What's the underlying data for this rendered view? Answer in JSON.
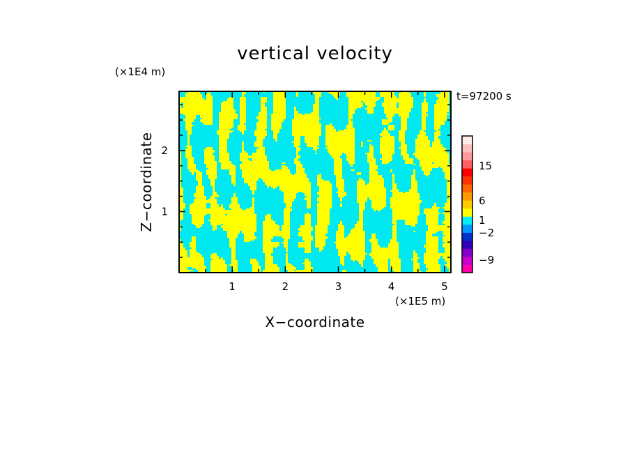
{
  "chart_data": {
    "type": "heatmap",
    "title": "vertical velocity",
    "xlabel": "X−coordinate",
    "ylabel": "Z−coordinate",
    "x_unit": "(×1E5 m)",
    "y_unit": "(×1E4 m)",
    "time_label": "t=97200 s",
    "xlim": [
      0,
      5.12
    ],
    "ylim": [
      0,
      2.97
    ],
    "x_ticks": [
      1,
      2,
      3,
      4,
      5
    ],
    "y_ticks": [
      1,
      2
    ],
    "x_tick_labels": [
      "1",
      "2",
      "3",
      "4",
      "5"
    ],
    "y_tick_labels": [
      "1",
      "2"
    ],
    "grid": false,
    "fill_colors": {
      "positive": "#ffff00",
      "negative": "#00e8f0"
    },
    "colorbar": {
      "position": "right",
      "bins": [
        {
          "color": "#ff00aa"
        },
        {
          "color": "#cc00cc"
        },
        {
          "color": "#8800cc"
        },
        {
          "color": "#3300bb"
        },
        {
          "color": "#0033cc"
        },
        {
          "color": "#0099ff"
        },
        {
          "color": "#00eeff"
        },
        {
          "color": "#ffff00"
        },
        {
          "color": "#ffcc00"
        },
        {
          "color": "#ff9900"
        },
        {
          "color": "#ff6600"
        },
        {
          "color": "#ff3300"
        },
        {
          "color": "#ff0000"
        },
        {
          "color": "#ff6060"
        },
        {
          "color": "#ff9999"
        },
        {
          "color": "#ffc0c0"
        },
        {
          "color": "#ffeeee"
        }
      ],
      "labeled_ticks": [
        {
          "label": "−9",
          "value": -9
        },
        {
          "label": "−2",
          "value": -2
        },
        {
          "label": "1",
          "value": 1
        },
        {
          "label": "6",
          "value": 6
        },
        {
          "label": "15",
          "value": 15
        }
      ]
    }
  }
}
